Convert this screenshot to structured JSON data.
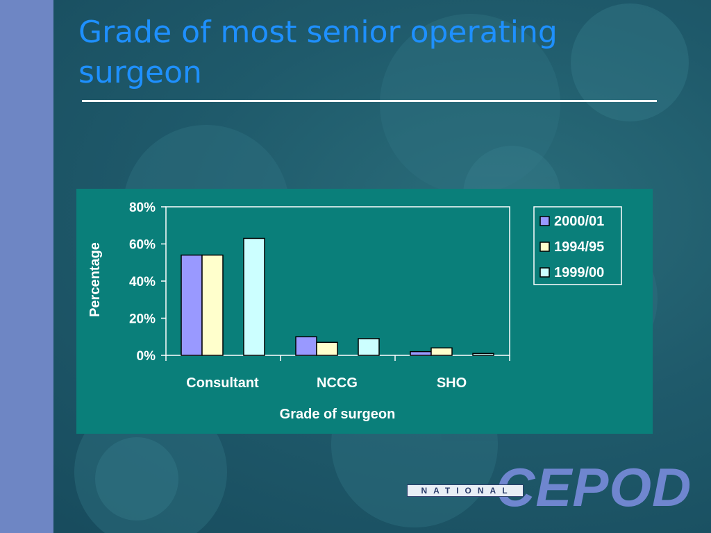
{
  "slide": {
    "title": "Grade of most senior operating surgeon",
    "logo": {
      "small_text": "NATIONAL",
      "large_text": "CEPOD"
    }
  },
  "colors": {
    "background": "#1e5366",
    "left_strip": "#6e86c4",
    "title": "#1e90ff",
    "panel": "#0a7f7a",
    "series": [
      "#9999ff",
      "#ffffcc",
      "#ccffff"
    ]
  },
  "chart_data": {
    "type": "bar",
    "xlabel": "Grade of surgeon",
    "ylabel": "Percentage",
    "categories": [
      "Consultant",
      "NCCG",
      "SHO"
    ],
    "series": [
      {
        "name": "2000/01",
        "values": [
          54,
          10,
          2
        ]
      },
      {
        "name": "1994/95",
        "values": [
          54,
          7,
          4
        ]
      },
      {
        "name": "1999/00",
        "values": [
          63,
          9,
          1
        ]
      }
    ],
    "ylim": [
      0,
      80
    ],
    "yticks": [
      0,
      20,
      40,
      60,
      80
    ],
    "ytick_labels": [
      "0%",
      "20%",
      "40%",
      "60%",
      "80%"
    ],
    "grid": false,
    "legend_position": "right"
  }
}
